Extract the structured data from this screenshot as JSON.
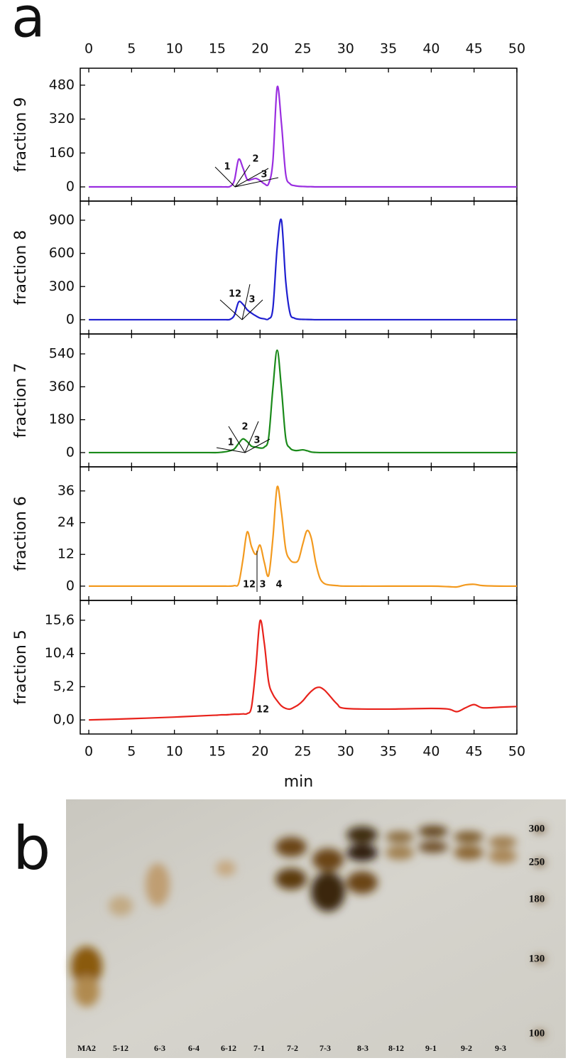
{
  "panel_labels": [
    "a",
    "b"
  ],
  "chart_data": [
    {
      "type": "line",
      "y_label": "fraction 9",
      "color": "#9a2ee0",
      "x": [
        0,
        5,
        10,
        14,
        15,
        15.5,
        16,
        16.5,
        17,
        17.5,
        18,
        18.5,
        19,
        19.5,
        20,
        20.5,
        21,
        21.5,
        22,
        22.5,
        23,
        23.5,
        24,
        24.5,
        25,
        25.5,
        26,
        26.5,
        27,
        27.5,
        28,
        29,
        30,
        35,
        40,
        42,
        43,
        44,
        45,
        46,
        48,
        50
      ],
      "values": [
        0,
        0,
        0,
        0,
        0,
        0,
        0,
        2,
        30,
        130,
        90,
        35,
        35,
        40,
        30,
        15,
        15,
        120,
        470,
        300,
        60,
        15,
        6,
        3,
        2,
        1,
        1,
        0,
        0,
        0,
        0,
        0,
        0,
        0,
        0,
        0,
        0,
        0,
        0,
        0,
        0,
        0
      ],
      "xlim": [
        -1,
        50
      ],
      "xticks": [
        0,
        5,
        10,
        15,
        20,
        25,
        30,
        35,
        40,
        45,
        50
      ],
      "ylim": [
        -67,
        560
      ],
      "yticks": [
        0,
        160,
        320,
        480
      ],
      "annotations": [
        "1",
        "2",
        "3"
      ]
    },
    {
      "type": "line",
      "y_label": "fraction 8",
      "color": "#1f1fd0",
      "x": [
        0,
        5,
        10,
        14,
        15,
        15.5,
        16,
        16.5,
        17,
        17.5,
        18,
        18.5,
        19,
        19.5,
        20,
        20.5,
        21,
        21.5,
        22,
        22.5,
        23,
        23.5,
        24,
        24.5,
        25,
        25.5,
        26,
        26.5,
        27,
        27.5,
        28,
        29,
        30,
        35,
        40,
        42,
        43,
        44,
        45,
        46,
        48,
        50
      ],
      "values": [
        0,
        0,
        0,
        0,
        0,
        0,
        0,
        3,
        40,
        160,
        140,
        90,
        60,
        35,
        15,
        8,
        8,
        100,
        650,
        900,
        350,
        60,
        15,
        5,
        3,
        2,
        1,
        0,
        0,
        0,
        0,
        0,
        0,
        0,
        0,
        0,
        0,
        0,
        0,
        0,
        0,
        0
      ],
      "xlim": [
        -1,
        50
      ],
      "xticks": [
        0,
        5,
        10,
        15,
        20,
        25,
        30,
        35,
        40,
        45,
        50
      ],
      "ylim": [
        -129,
        1073
      ],
      "yticks": [
        0,
        300,
        600,
        900
      ],
      "annotations": [
        "12",
        "3"
      ]
    },
    {
      "type": "line",
      "y_label": "fraction 7",
      "color": "#1a8a1a",
      "x": [
        0,
        5,
        10,
        14,
        15,
        15.5,
        16,
        16.5,
        17,
        17.5,
        18,
        18.5,
        19,
        19.5,
        20,
        20.5,
        21,
        21.5,
        22,
        22.5,
        23,
        23.5,
        24,
        24.5,
        25,
        25.5,
        26,
        26.5,
        27,
        27.5,
        28,
        29,
        30,
        35,
        40,
        42,
        43,
        44,
        45,
        46,
        48,
        50
      ],
      "values": [
        0,
        0,
        0,
        0,
        0,
        2,
        5,
        10,
        20,
        50,
        75,
        60,
        35,
        30,
        25,
        30,
        80,
        350,
        560,
        350,
        80,
        25,
        12,
        12,
        15,
        10,
        3,
        1,
        0,
        0,
        0,
        0,
        0,
        0,
        0,
        0,
        0,
        0,
        0,
        0,
        0,
        0
      ],
      "xlim": [
        -1,
        50
      ],
      "xticks": [
        0,
        5,
        10,
        15,
        20,
        25,
        30,
        35,
        40,
        45,
        50
      ],
      "ylim": [
        -78,
        649
      ],
      "yticks": [
        0,
        180,
        360,
        540
      ],
      "annotations": [
        "1",
        "2",
        "3"
      ]
    },
    {
      "type": "line",
      "y_label": "fraction 6",
      "color": "#f39a1f",
      "x": [
        0,
        5,
        10,
        14,
        15,
        15.5,
        16,
        16.5,
        17,
        17.5,
        18,
        18.5,
        19,
        19.5,
        20,
        20.5,
        21,
        21.5,
        22,
        22.5,
        23,
        23.5,
        24,
        24.5,
        25,
        25.5,
        26,
        26.5,
        27,
        27.5,
        28,
        29,
        30,
        35,
        40,
        42,
        43,
        44,
        45,
        46,
        48,
        50
      ],
      "values": [
        0,
        0,
        0,
        0,
        0,
        0,
        0,
        0,
        0.2,
        1,
        10,
        20.5,
        15,
        12,
        15.5,
        9,
        4,
        18,
        37.5,
        28,
        14,
        10,
        9,
        10,
        16,
        21,
        18,
        9,
        3,
        1,
        0.5,
        0.2,
        0,
        0,
        0,
        -0.2,
        -0.3,
        0.5,
        0.7,
        0.2,
        0,
        0
      ],
      "xlim": [
        -1,
        50
      ],
      "xticks": [
        0,
        5,
        10,
        15,
        20,
        25,
        30,
        35,
        40,
        45,
        50
      ],
      "ylim": [
        -5.4,
        45.1
      ],
      "yticks": [
        0,
        12,
        24,
        36
      ],
      "annotations": [
        "12",
        "3",
        "4"
      ]
    },
    {
      "type": "line",
      "y_label": "fraction 5",
      "x_label": "min",
      "color": "#e8221b",
      "x": [
        0,
        5,
        10,
        14,
        15,
        15.5,
        16,
        16.5,
        17,
        17.5,
        18,
        18.5,
        19,
        19.5,
        20,
        20.5,
        21,
        21.5,
        22,
        22.5,
        23,
        23.5,
        24,
        24.5,
        25,
        25.5,
        26,
        26.5,
        27,
        27.5,
        28,
        29,
        30,
        35,
        40,
        42,
        43,
        44,
        45,
        46,
        48,
        50
      ],
      "values": [
        0,
        0.2,
        0.45,
        0.7,
        0.75,
        0.8,
        0.8,
        0.85,
        0.9,
        0.9,
        0.95,
        1,
        2,
        8,
        15.5,
        12,
        6,
        4,
        3,
        2.2,
        1.8,
        1.7,
        2,
        2.4,
        3,
        3.8,
        4.5,
        5,
        5.1,
        4.7,
        4,
        2.5,
        1.8,
        1.7,
        1.8,
        1.7,
        1.3,
        1.9,
        2.4,
        1.9,
        2,
        2.1
      ],
      "xlim": [
        -1,
        50
      ],
      "xticks": [
        0,
        5,
        10,
        15,
        20,
        25,
        30,
        35,
        40,
        45,
        50
      ],
      "ylim": [
        -2.2,
        18.7
      ],
      "yticks": [
        {
          "value": 0,
          "label": "0,0"
        },
        {
          "value": 5.2,
          "label": "5,2"
        },
        {
          "value": 10.4,
          "label": "10,4"
        },
        {
          "value": 15.6,
          "label": "15,6"
        }
      ],
      "annotations": [
        "12"
      ]
    }
  ],
  "gel": {
    "lanes": [
      "MA2",
      "5-12",
      "6-3",
      "6-4",
      "6-12",
      "7-1",
      "7-2",
      "7-3",
      "8-3",
      "8-12",
      "9-1",
      "9-2",
      "9-3"
    ],
    "markers": [
      300,
      250,
      180,
      130,
      100
    ]
  }
}
